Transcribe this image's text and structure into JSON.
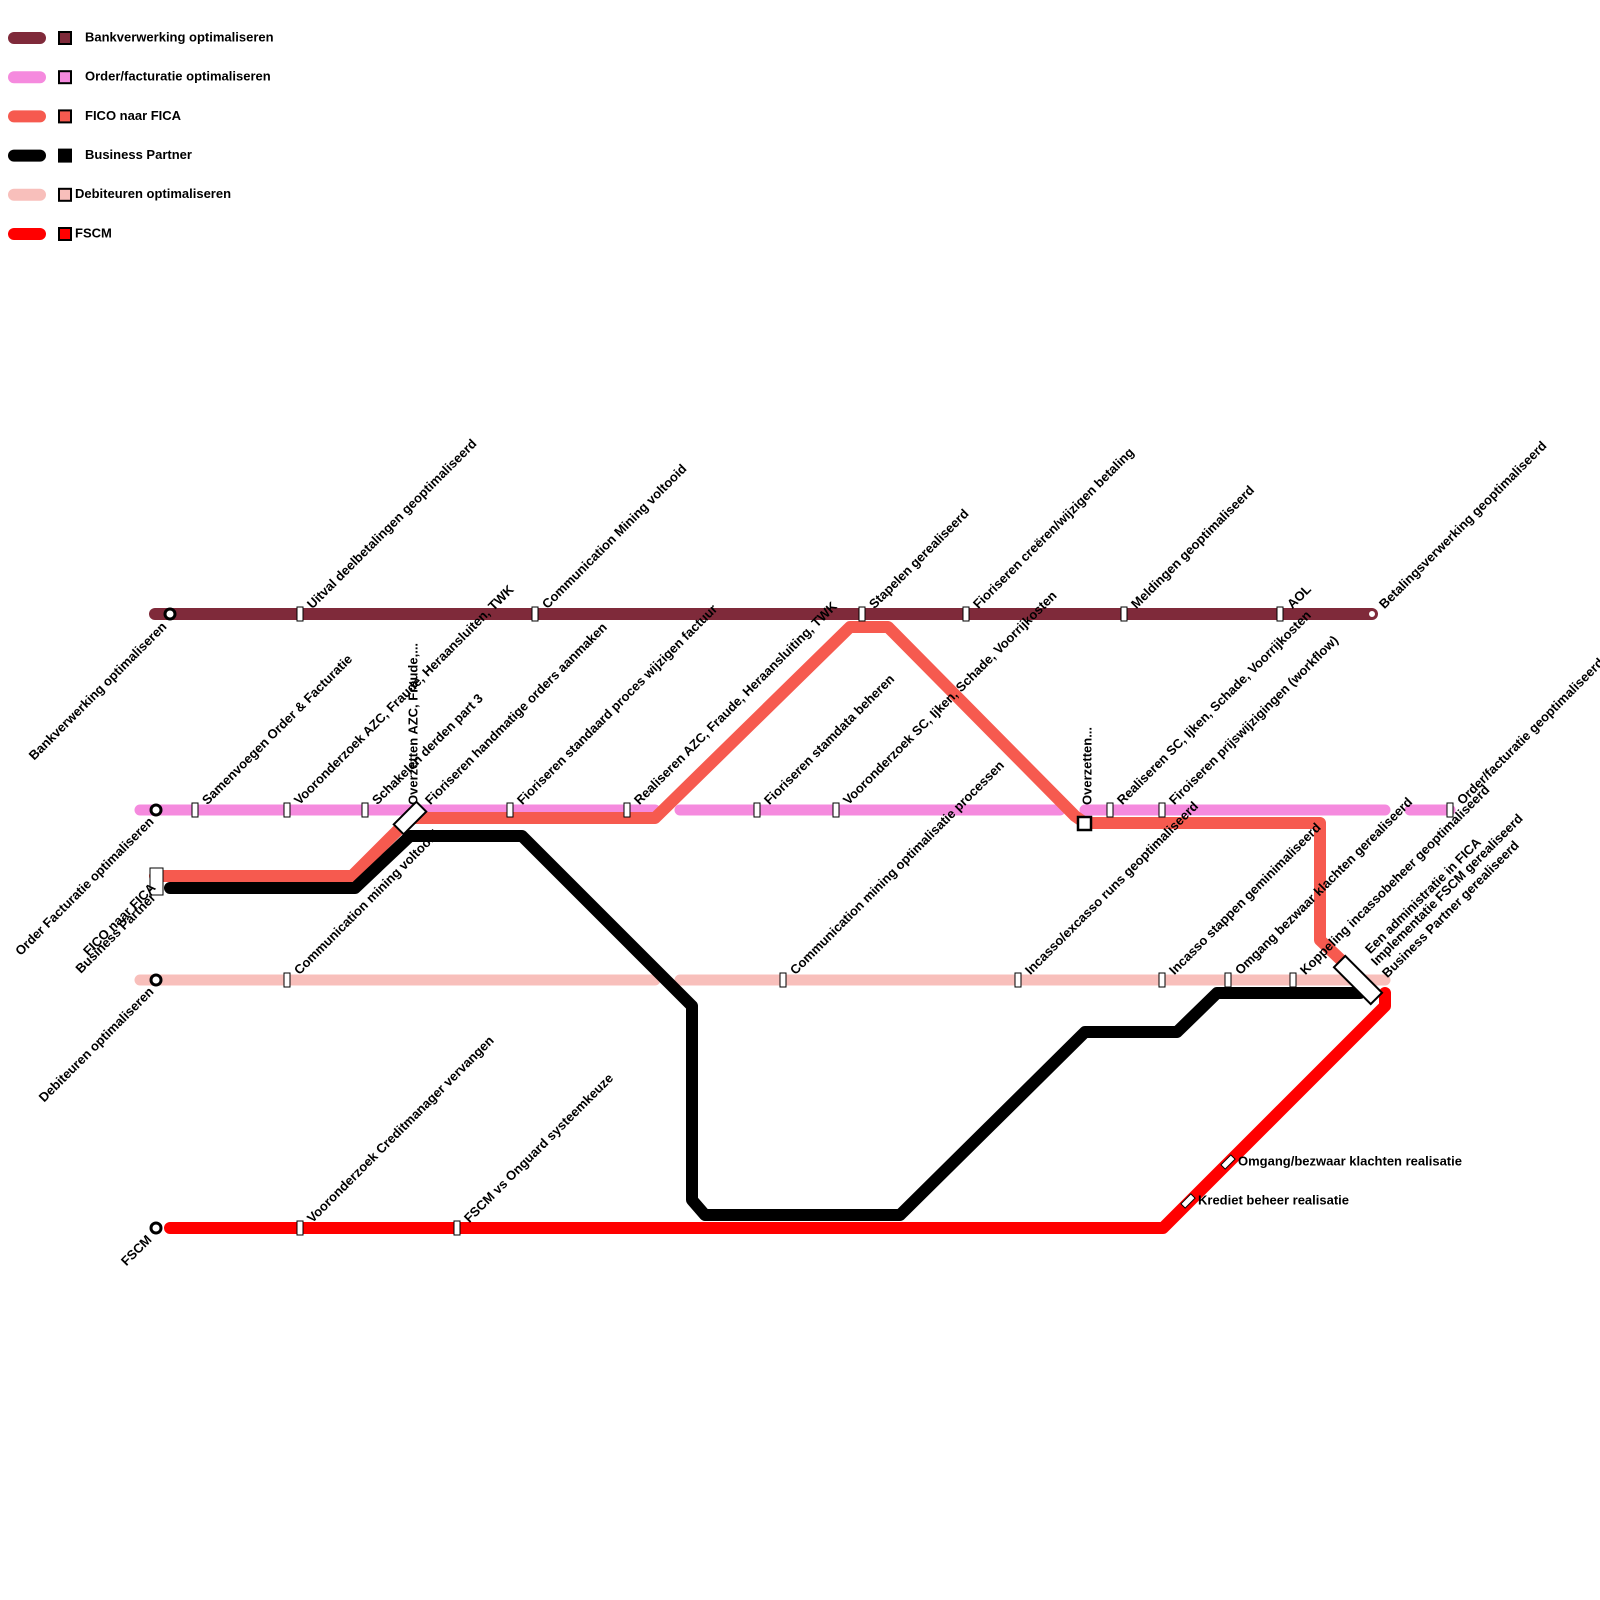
{
  "legend": [
    {
      "label": "Bankverwerking optimaliseren",
      "color": "#7f2a3a"
    },
    {
      "label": "Order/facturatie optimaliseren",
      "color": "#f58ade"
    },
    {
      "label": "FICO naar FICA",
      "color": "#f65a4f"
    },
    {
      "label": "Business Partner",
      "color": "#000000"
    },
    {
      "label": "Debiteuren optimaliseren",
      "color": "#f8bfbb"
    },
    {
      "label": "FSCM",
      "color": "#ff0000"
    }
  ],
  "stations": [
    {
      "label": "Bankverwerking optimaliseren"
    },
    {
      "label": "Order Facturatie optimaliseren"
    },
    {
      "label": "FICO naar FICA"
    },
    {
      "label": "Business Partner"
    },
    {
      "label": "Debiteuren optimaliseren"
    },
    {
      "label": "FSCM"
    },
    {
      "label": "Uitval deelbetalingen geoptimaliseerd"
    },
    {
      "label": "Communication Mining voltooid"
    },
    {
      "label": "Stapelen gerealiseerd"
    },
    {
      "label": "Fioriseren  creëren/wijzigen betaling"
    },
    {
      "label": "Meldingen geoptimaliseerd"
    },
    {
      "label": "AOL"
    },
    {
      "label": "Betalingsverwerking geoptimaliseerd"
    },
    {
      "label": "Samenvoegen Order & Facturatie"
    },
    {
      "label": "Vooronderzoek AZC, Fraude, Heraansluiten, TWK"
    },
    {
      "label": "Schakelen derden part 3"
    },
    {
      "label": "Overzetten AZC, Fraude,..."
    },
    {
      "label": "Fioriseren handmatige orders aanmaken"
    },
    {
      "label": "Fioriseren standaard proces wijzigen factuur"
    },
    {
      "label": "Realiseren AZC, Fraude, Heraansluiting, TWK"
    },
    {
      "label": "Fioriseren stamdata beheren"
    },
    {
      "label": "Vooronderzoek SC, Ijken, Schade, Voorrijkosten"
    },
    {
      "label": "Overzetten..."
    },
    {
      "label": "Realiseren SC, Ijken, Schade, Voorrijkosten"
    },
    {
      "label": "Firoiseren prijswijzigingen (workflow)"
    },
    {
      "label": "Order/facturatie geoptimaliseerd"
    },
    {
      "label": "Communication mining voltooid"
    },
    {
      "label": "Communication mining optimalisatie processen"
    },
    {
      "label": "Incasso/excasso runs geoptimaliseerd"
    },
    {
      "label": "Incasso stappen geminimaliseerd"
    },
    {
      "label": "Omgang bezwaar klachten gerealiseerd"
    },
    {
      "label": "Koppeling incassobeheer geoptimaliseerd"
    },
    {
      "label": "Een administratie in FICA"
    },
    {
      "label": "Implementatie FSCM gerealiseerd"
    },
    {
      "label": "Business Partner gerealiseerd"
    },
    {
      "label": "Vooronderzoek Creditmanager vervangen"
    },
    {
      "label": "FSCM vs Onguard systeemkeuze"
    },
    {
      "label": "Krediet beheer realisatie"
    },
    {
      "label": "Omgang/bezwaar klachten realisatie"
    }
  ]
}
